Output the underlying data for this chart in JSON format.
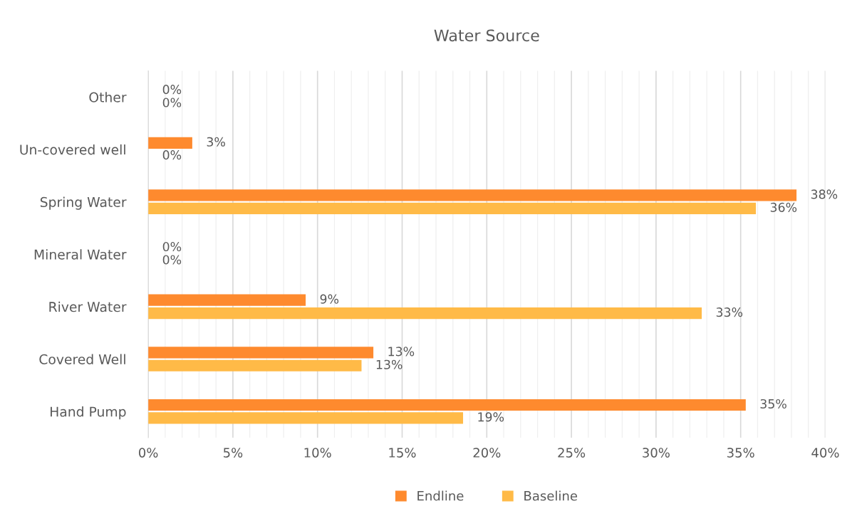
{
  "chart_data": {
    "type": "bar",
    "orientation": "horizontal",
    "title": "Water Source",
    "categories": [
      "Other",
      "Un-covered well",
      "Spring Water",
      "Mineral Water",
      "River Water",
      "Covered Well",
      "Hand Pump"
    ],
    "series": [
      {
        "name": "Endline",
        "color": "#fe8a2e",
        "values": [
          0,
          2.6,
          38.3,
          0,
          9.3,
          13.3,
          35.3
        ],
        "value_labels": [
          "0%",
          "3%",
          "38%",
          "0%",
          "9%",
          "13%",
          "35%"
        ]
      },
      {
        "name": "Baseline",
        "color": "#ffba47",
        "values": [
          0,
          0,
          35.9,
          0,
          32.7,
          12.6,
          18.6
        ],
        "value_labels": [
          "0%",
          "0%",
          "36%",
          "0%",
          "33%",
          "13%",
          "19%"
        ]
      }
    ],
    "xlim": [
      0,
      40
    ],
    "xticks": [
      {
        "value": 0,
        "label": "0%"
      },
      {
        "value": 1,
        "label": null
      },
      {
        "value": 2,
        "label": null
      },
      {
        "value": 3,
        "label": null
      },
      {
        "value": 4,
        "label": null
      },
      {
        "value": 5,
        "label": "5%"
      },
      {
        "value": 6,
        "label": null
      },
      {
        "value": 7,
        "label": null
      },
      {
        "value": 8,
        "label": null
      },
      {
        "value": 9,
        "label": null
      },
      {
        "value": 10,
        "label": "10%"
      },
      {
        "value": 11,
        "label": null
      },
      {
        "value": 12,
        "label": null
      },
      {
        "value": 13,
        "label": null
      },
      {
        "value": 14,
        "label": null
      },
      {
        "value": 15,
        "label": "15%"
      },
      {
        "value": 16,
        "label": null
      },
      {
        "value": 17,
        "label": null
      },
      {
        "value": 18,
        "label": null
      },
      {
        "value": 19,
        "label": null
      },
      {
        "value": 20,
        "label": "20%"
      },
      {
        "value": 21,
        "label": null
      },
      {
        "value": 22,
        "label": null
      },
      {
        "value": 23,
        "label": null
      },
      {
        "value": 24,
        "label": null
      },
      {
        "value": 25,
        "label": "25%"
      },
      {
        "value": 26,
        "label": null
      },
      {
        "value": 27,
        "label": null
      },
      {
        "value": 28,
        "label": null
      },
      {
        "value": 29,
        "label": null
      },
      {
        "value": 30,
        "label": "30%"
      },
      {
        "value": 31,
        "label": null
      },
      {
        "value": 32,
        "label": null
      },
      {
        "value": 33,
        "label": null
      },
      {
        "value": 34,
        "label": null
      },
      {
        "value": 35,
        "label": "35%"
      },
      {
        "value": 36,
        "label": null
      },
      {
        "value": 37,
        "label": null
      },
      {
        "value": 38,
        "label": null
      },
      {
        "value": 39,
        "label": null
      },
      {
        "value": 40,
        "label": "40%"
      }
    ],
    "grid": "x",
    "legend": "bottom"
  }
}
